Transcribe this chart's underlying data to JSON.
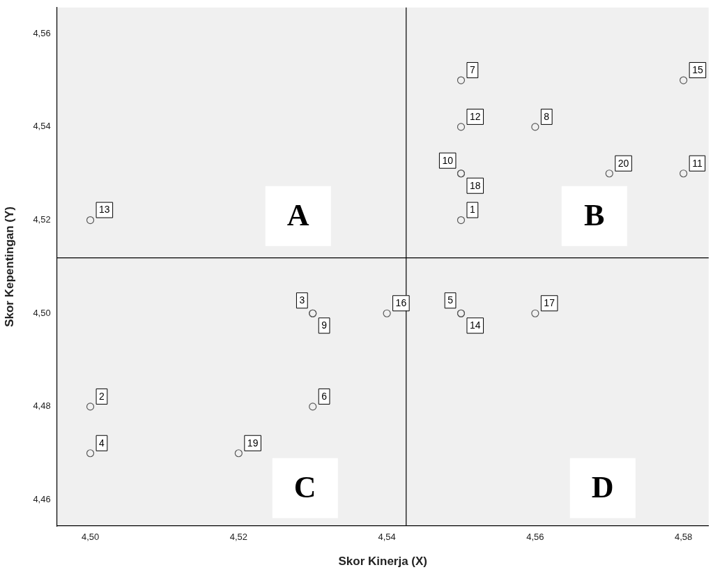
{
  "chart_data": {
    "type": "scatter",
    "xlabel": "Skor Kinerja (X)",
    "ylabel": "Skor Kepentingan (Y)",
    "x": [
      4.55,
      4.5,
      4.53,
      4.5,
      4.55,
      4.53,
      4.55,
      4.56,
      4.53,
      4.55,
      4.58,
      4.55,
      4.5,
      4.55,
      4.58,
      4.54,
      4.56,
      4.55,
      4.52,
      4.57
    ],
    "values": [
      4.52,
      4.48,
      4.5,
      4.47,
      4.5,
      4.48,
      4.55,
      4.54,
      4.5,
      4.53,
      4.53,
      4.54,
      4.52,
      4.5,
      4.55,
      4.5,
      4.5,
      4.53,
      4.47,
      4.53
    ],
    "color": "#595959",
    "marker": "circle",
    "xlim": [
      4.4955,
      4.5834
    ],
    "ylim": [
      4.4544,
      4.5656
    ],
    "xticks": [
      {
        "value": 4.5,
        "label": "4,50"
      },
      {
        "value": 4.52,
        "label": "4,52"
      },
      {
        "value": 4.54,
        "label": "4,54"
      },
      {
        "value": 4.56,
        "label": "4,56"
      },
      {
        "value": 4.58,
        "label": "4,58"
      }
    ],
    "yticks": [
      {
        "value": 4.46,
        "label": "4,46"
      },
      {
        "value": 4.48,
        "label": "4,48"
      },
      {
        "value": 4.5,
        "label": "4,50"
      },
      {
        "value": 4.52,
        "label": "4,52"
      },
      {
        "value": 4.54,
        "label": "4,54"
      },
      {
        "value": 4.56,
        "label": "4,56"
      }
    ],
    "ref_lines": [
      {
        "axis": "x",
        "value": 4.5426,
        "color": "#000000"
      },
      {
        "axis": "y",
        "value": 4.5119,
        "color": "#000000"
      }
    ],
    "annotations": [
      {
        "text": "1",
        "x": 4.55,
        "y": 4.52
      },
      {
        "text": "2",
        "x": 4.5,
        "y": 4.48
      },
      {
        "text": "3",
        "x": 4.53,
        "y": 4.5
      },
      {
        "text": "4",
        "x": 4.5,
        "y": 4.47
      },
      {
        "text": "5",
        "x": 4.55,
        "y": 4.5
      },
      {
        "text": "6",
        "x": 4.53,
        "y": 4.48
      },
      {
        "text": "7",
        "x": 4.55,
        "y": 4.55
      },
      {
        "text": "8",
        "x": 4.56,
        "y": 4.54
      },
      {
        "text": "9",
        "x": 4.53,
        "y": 4.5
      },
      {
        "text": "10",
        "x": 4.55,
        "y": 4.53
      },
      {
        "text": "11",
        "x": 4.58,
        "y": 4.53
      },
      {
        "text": "12",
        "x": 4.55,
        "y": 4.54
      },
      {
        "text": "13",
        "x": 4.5,
        "y": 4.52
      },
      {
        "text": "14",
        "x": 4.55,
        "y": 4.5
      },
      {
        "text": "15",
        "x": 4.58,
        "y": 4.55
      },
      {
        "text": "16",
        "x": 4.54,
        "y": 4.5
      },
      {
        "text": "17",
        "x": 4.56,
        "y": 4.5
      },
      {
        "text": "18",
        "x": 4.55,
        "y": 4.53
      },
      {
        "text": "19",
        "x": 4.52,
        "y": 4.47
      },
      {
        "text": "20",
        "x": 4.57,
        "y": 4.53
      },
      "A",
      "B",
      "C",
      "D"
    ],
    "legend": false,
    "grid": false
  }
}
